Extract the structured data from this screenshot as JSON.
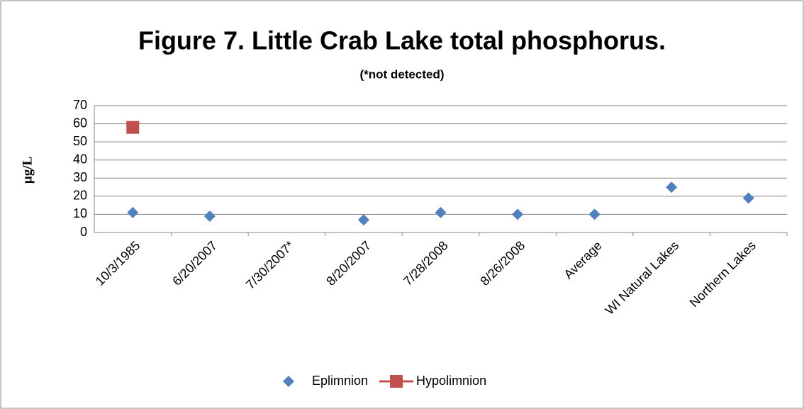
{
  "chart_data": {
    "type": "scatter",
    "title": "Figure 7. Little Crab Lake total phosphorus.",
    "subtitle": "(*not detected)",
    "y_label": "µg/L",
    "categories": [
      "10/3/1985",
      "6/20/2007",
      "7/30/2007*",
      "8/20/2007",
      "7/28/2008",
      "8/26/2008",
      "Average",
      "WI Natural Lakes",
      "Northern Lakes"
    ],
    "series": [
      {
        "name": "Eplimnion",
        "color": "#4f81bd",
        "marker": "diamond",
        "line": false,
        "values": [
          11,
          9,
          null,
          7,
          11,
          10,
          10,
          25,
          19
        ]
      },
      {
        "name": "Hypolimnion",
        "color": "#c0504d",
        "marker": "square",
        "line": true,
        "values": [
          58,
          null,
          null,
          null,
          null,
          null,
          null,
          null,
          null
        ]
      }
    ],
    "ylim": [
      0,
      70
    ],
    "yticks": [
      0,
      10,
      20,
      30,
      40,
      50,
      60,
      70
    ],
    "grid": true,
    "legend": "bottom"
  }
}
